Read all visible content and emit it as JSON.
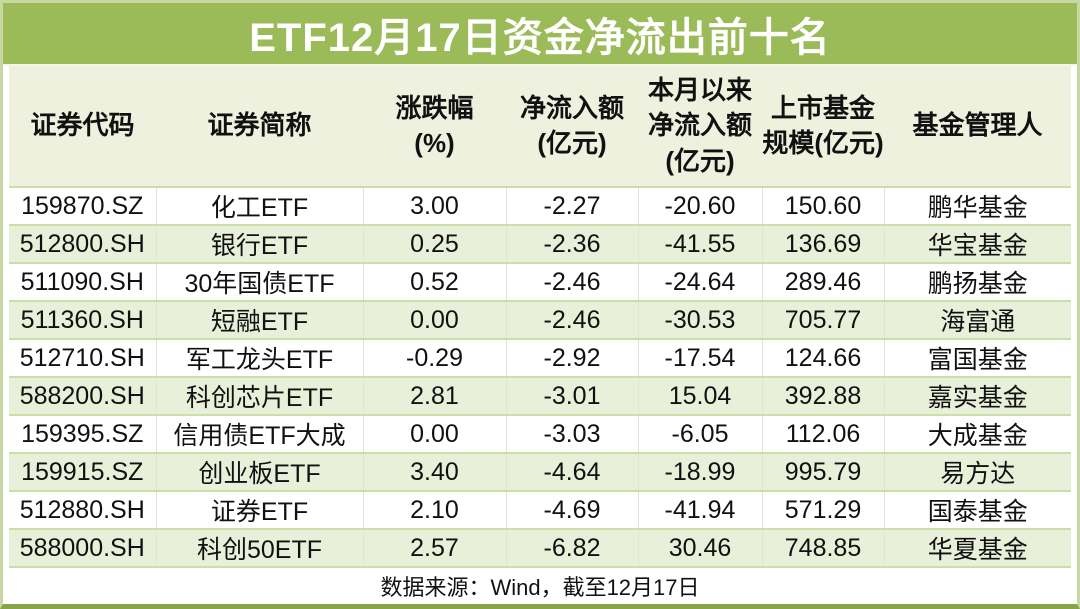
{
  "title": "ETF12月17日资金净流出前十名",
  "source_note": "数据来源：Wind，截至12月17日",
  "colors": {
    "title_bar_bg": "#9bbb59",
    "title_text": "#ffffff",
    "header_bg": "#edf1de",
    "row_alt_bg": "#e9f0da",
    "row_bg": "#ffffff",
    "grid_line_green": "#cddfa8",
    "grid_line_vertical": "#e0e5d2",
    "outer_frame": "#c6d7a2",
    "text": "#111111"
  },
  "chart_data": {
    "type": "table",
    "title": "ETF12月17日资金净流出前十名",
    "columns": [
      "证券代码",
      "证券简称",
      "涨跌幅\n(%)",
      "净流入额\n(亿元)",
      "本月以来\n净流入额\n(亿元)",
      "上市基金\n规模(亿元)",
      "基金管理人"
    ],
    "rows": [
      [
        "159870.SZ",
        "化工ETF",
        "3.00",
        "-2.27",
        "-20.60",
        "150.60",
        "鹏华基金"
      ],
      [
        "512800.SH",
        "银行ETF",
        "0.25",
        "-2.36",
        "-41.55",
        "136.69",
        "华宝基金"
      ],
      [
        "511090.SH",
        "30年国债ETF",
        "0.52",
        "-2.46",
        "-24.64",
        "289.46",
        "鹏扬基金"
      ],
      [
        "511360.SH",
        "短融ETF",
        "0.00",
        "-2.46",
        "-30.53",
        "705.77",
        "海富通"
      ],
      [
        "512710.SH",
        "军工龙头ETF",
        "-0.29",
        "-2.92",
        "-17.54",
        "124.66",
        "富国基金"
      ],
      [
        "588200.SH",
        "科创芯片ETF",
        "2.81",
        "-3.01",
        "15.04",
        "392.88",
        "嘉实基金"
      ],
      [
        "159395.SZ",
        "信用债ETF大成",
        "0.00",
        "-3.03",
        "-6.05",
        "112.06",
        "大成基金"
      ],
      [
        "159915.SZ",
        "创业板ETF",
        "3.40",
        "-4.64",
        "-18.99",
        "995.79",
        "易方达"
      ],
      [
        "512880.SH",
        "证券ETF",
        "2.10",
        "-4.69",
        "-41.94",
        "571.29",
        "国泰基金"
      ],
      [
        "588000.SH",
        "科创50ETF",
        "2.57",
        "-6.82",
        "30.46",
        "748.85",
        "华夏基金"
      ]
    ],
    "footer": "数据来源：Wind，截至12月17日"
  }
}
